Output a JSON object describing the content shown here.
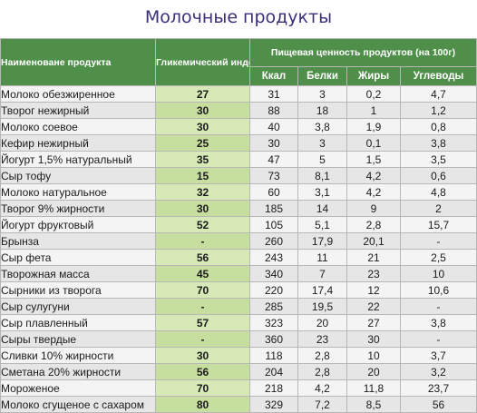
{
  "title": "Молочные продукты",
  "headers": {
    "name": "Наименоване продукта",
    "gi": "Гликемический индекс",
    "nutrition": "Пищевая ценность продуктов (на 100г)",
    "kcal": "Ккал",
    "protein": "Белки",
    "fat": "Жиры",
    "carbs": "Углеводы"
  },
  "colors": {
    "header_bg": "#4f8f4a",
    "gi_cell_bg": "#d6e9b7",
    "title": "#3b2e7a"
  },
  "rows": [
    {
      "name": "Молоко обезжиренное",
      "gi": "27",
      "kcal": "31",
      "protein": "3",
      "fat": "0,2",
      "carbs": "4,7"
    },
    {
      "name": "Творог нежирный",
      "gi": "30",
      "kcal": "88",
      "protein": "18",
      "fat": "1",
      "carbs": "1,2"
    },
    {
      "name": "Молоко соевое",
      "gi": "30",
      "kcal": "40",
      "protein": "3,8",
      "fat": "1,9",
      "carbs": "0,8"
    },
    {
      "name": "Кефир нежирный",
      "gi": "25",
      "kcal": "30",
      "protein": "3",
      "fat": "0,1",
      "carbs": "3,8"
    },
    {
      "name": "Йогурт 1,5% натуральный",
      "gi": "35",
      "kcal": "47",
      "protein": "5",
      "fat": "1,5",
      "carbs": "3,5"
    },
    {
      "name": "Сыр тофу",
      "gi": "15",
      "kcal": "73",
      "protein": "8,1",
      "fat": "4,2",
      "carbs": "0,6"
    },
    {
      "name": "Молоко натуральное",
      "gi": "32",
      "kcal": "60",
      "protein": "3,1",
      "fat": "4,2",
      "carbs": "4,8"
    },
    {
      "name": "Творог 9% жирности",
      "gi": "30",
      "kcal": "185",
      "protein": "14",
      "fat": "9",
      "carbs": "2"
    },
    {
      "name": "Йогурт фруктовый",
      "gi": "52",
      "kcal": "105",
      "protein": "5,1",
      "fat": "2,8",
      "carbs": "15,7"
    },
    {
      "name": "Брынза",
      "gi": "-",
      "kcal": "260",
      "protein": "17,9",
      "fat": "20,1",
      "carbs": "-"
    },
    {
      "name": "Сыр фета",
      "gi": "56",
      "kcal": "243",
      "protein": "11",
      "fat": "21",
      "carbs": "2,5"
    },
    {
      "name": "Творожная масса",
      "gi": "45",
      "kcal": "340",
      "protein": "7",
      "fat": "23",
      "carbs": "10"
    },
    {
      "name": "Сырники из творога",
      "gi": "70",
      "kcal": "220",
      "protein": "17,4",
      "fat": "12",
      "carbs": "10,6"
    },
    {
      "name": "Сыр сулугуни",
      "gi": "-",
      "kcal": "285",
      "protein": "19,5",
      "fat": "22",
      "carbs": "-"
    },
    {
      "name": "Сыр плавленный",
      "gi": "57",
      "kcal": "323",
      "protein": "20",
      "fat": "27",
      "carbs": "3,8"
    },
    {
      "name": "Сыры твердые",
      "gi": "-",
      "kcal": "360",
      "protein": "23",
      "fat": "30",
      "carbs": "-"
    },
    {
      "name": "Сливки 10% жирности",
      "gi": "30",
      "kcal": "118",
      "protein": "2,8",
      "fat": "10",
      "carbs": "3,7"
    },
    {
      "name": "Сметана 20% жирности",
      "gi": "56",
      "kcal": "204",
      "protein": "2,8",
      "fat": "20",
      "carbs": "3,2"
    },
    {
      "name": "Мороженое",
      "gi": "70",
      "kcal": "218",
      "protein": "4,2",
      "fat": "11,8",
      "carbs": "23,7"
    },
    {
      "name": "Молоко сгущеное с сахаром",
      "gi": "80",
      "kcal": "329",
      "protein": "7,2",
      "fat": "8,5",
      "carbs": "56"
    }
  ]
}
